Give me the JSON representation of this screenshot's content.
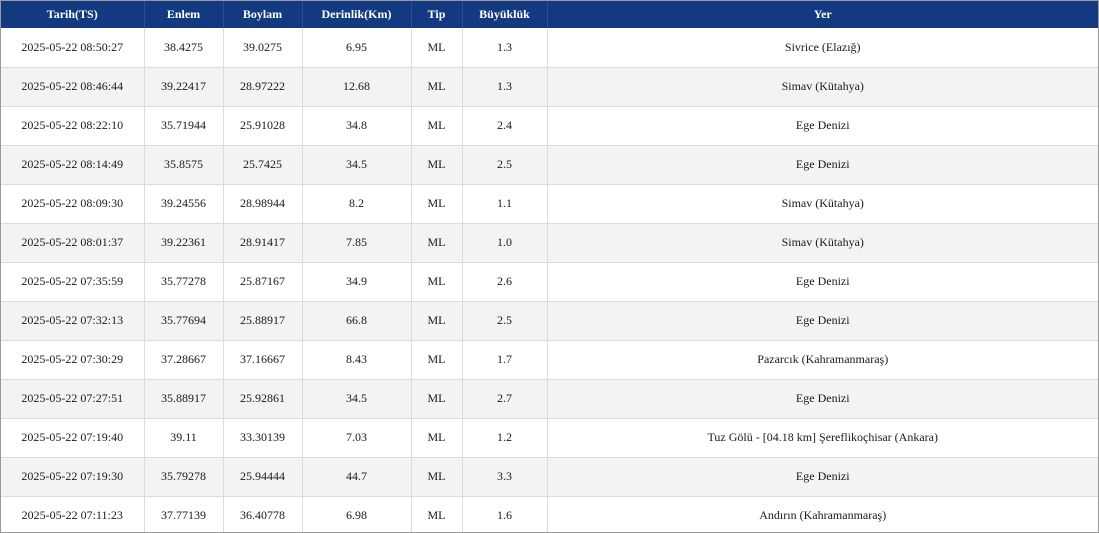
{
  "table": {
    "headers": [
      "Tarih(TS)",
      "Enlem",
      "Boylam",
      "Derinlik(Km)",
      "Tip",
      "Büyüklük",
      "Yer"
    ],
    "rows": [
      [
        "2025-05-22 08:50:27",
        "38.4275",
        "39.0275",
        "6.95",
        "ML",
        "1.3",
        "Sivrice (Elazığ)"
      ],
      [
        "2025-05-22 08:46:44",
        "39.22417",
        "28.97222",
        "12.68",
        "ML",
        "1.3",
        "Simav (Kütahya)"
      ],
      [
        "2025-05-22 08:22:10",
        "35.71944",
        "25.91028",
        "34.8",
        "ML",
        "2.4",
        "Ege Denizi"
      ],
      [
        "2025-05-22 08:14:49",
        "35.8575",
        "25.7425",
        "34.5",
        "ML",
        "2.5",
        "Ege Denizi"
      ],
      [
        "2025-05-22 08:09:30",
        "39.24556",
        "28.98944",
        "8.2",
        "ML",
        "1.1",
        "Simav (Kütahya)"
      ],
      [
        "2025-05-22 08:01:37",
        "39.22361",
        "28.91417",
        "7.85",
        "ML",
        "1.0",
        "Simav (Kütahya)"
      ],
      [
        "2025-05-22 07:35:59",
        "35.77278",
        "25.87167",
        "34.9",
        "ML",
        "2.6",
        "Ege Denizi"
      ],
      [
        "2025-05-22 07:32:13",
        "35.77694",
        "25.88917",
        "66.8",
        "ML",
        "2.5",
        "Ege Denizi"
      ],
      [
        "2025-05-22 07:30:29",
        "37.28667",
        "37.16667",
        "8.43",
        "ML",
        "1.7",
        "Pazarcık (Kahramanmaraş)"
      ],
      [
        "2025-05-22 07:27:51",
        "35.88917",
        "25.92861",
        "34.5",
        "ML",
        "2.7",
        "Ege Denizi"
      ],
      [
        "2025-05-22 07:19:40",
        "39.11",
        "33.30139",
        "7.03",
        "ML",
        "1.2",
        "Tuz Gölü - [04.18 km] Şereflikoçhisar (Ankara)"
      ],
      [
        "2025-05-22 07:19:30",
        "35.79278",
        "25.94444",
        "44.7",
        "ML",
        "3.3",
        "Ege Denizi"
      ],
      [
        "2025-05-22 07:11:23",
        "37.77139",
        "36.40778",
        "6.98",
        "ML",
        "1.6",
        "Andırın (Kahramanmaraş)"
      ]
    ]
  },
  "colors": {
    "header_bg": "#133a80",
    "header_text": "#ffffff",
    "row_alt_bg": "#f3f3f3"
  }
}
